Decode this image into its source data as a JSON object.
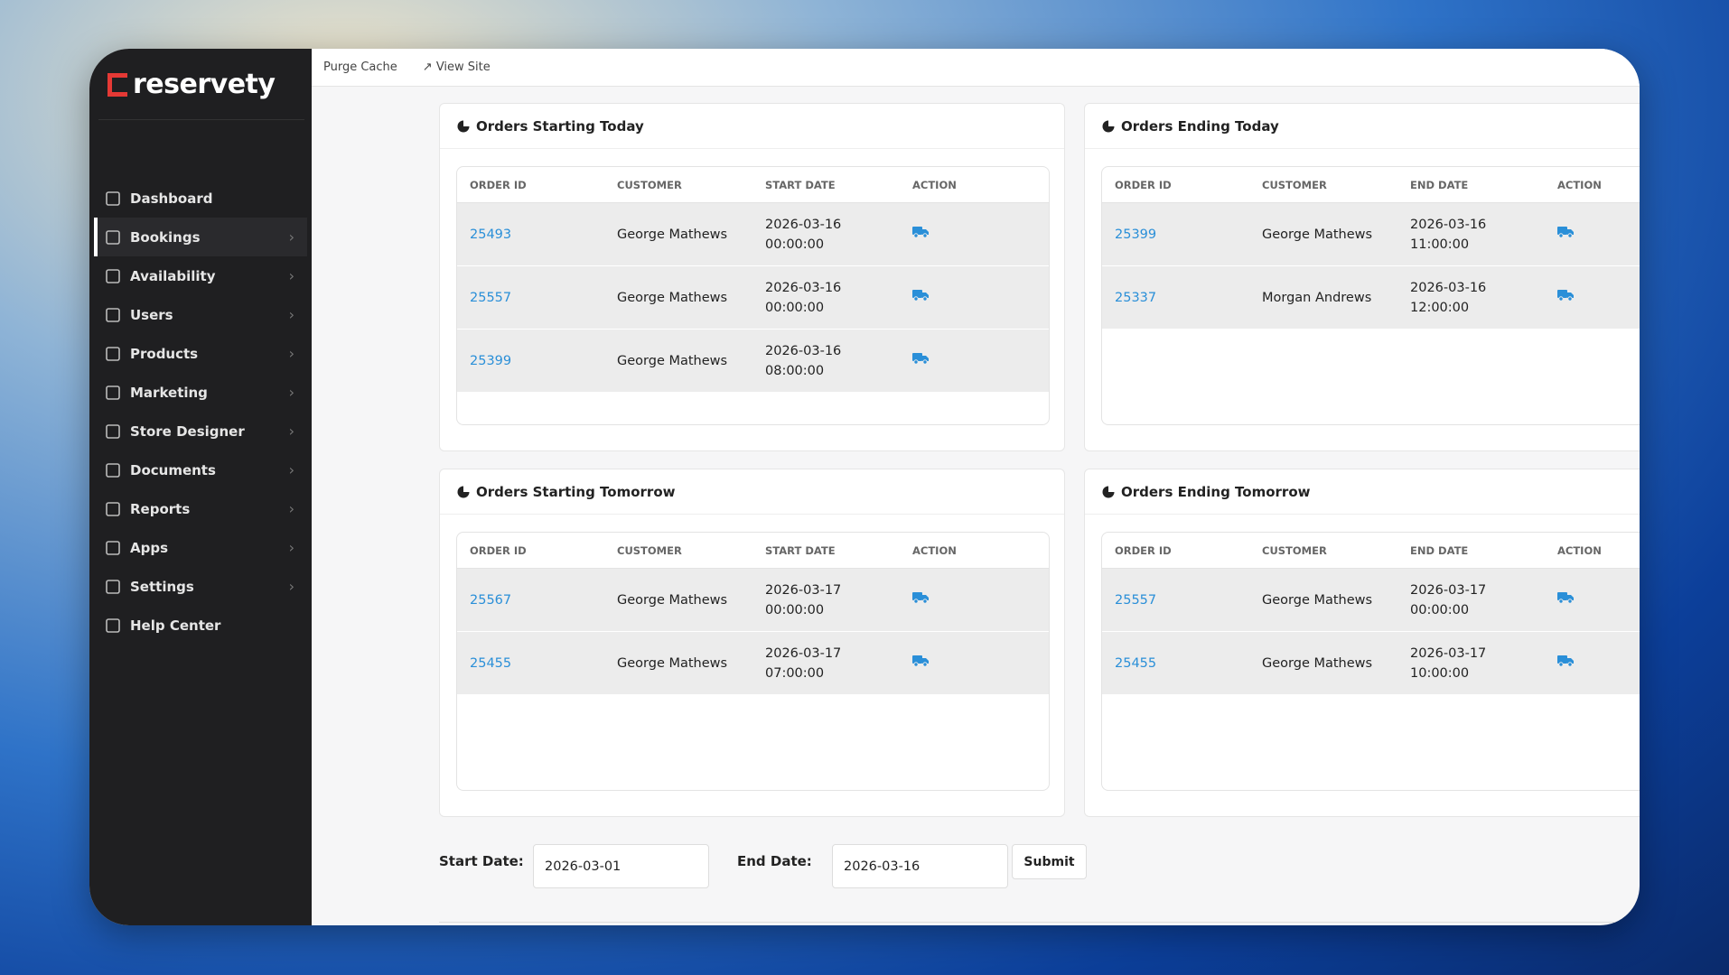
{
  "brand": "reservety",
  "topbar": {
    "links": [
      "Purge Cache",
      "View Site"
    ]
  },
  "sidebar": {
    "active": 1,
    "items": [
      "Dashboard",
      "Bookings",
      "Availability",
      "Users",
      "Products",
      "Marketing",
      "Store Designer",
      "Documents",
      "Reports",
      "Apps",
      "Settings",
      "Help Center"
    ]
  },
  "panels": [
    {
      "title": "Orders Starting Today",
      "columns": [
        "ORDER ID",
        "CUSTOMER",
        "START DATE",
        "ACTION"
      ],
      "rows": [
        {
          "order_id": "25493",
          "customer": "George Mathews",
          "date": "2026-03-16",
          "time": "00:00:00"
        },
        {
          "order_id": "25557",
          "customer": "George Mathews",
          "date": "2026-03-16",
          "time": "00:00:00"
        },
        {
          "order_id": "25399",
          "customer": "George Mathews",
          "date": "2026-03-16",
          "time": "08:00:00"
        }
      ]
    },
    {
      "title": "Orders Ending Today",
      "columns": [
        "ORDER ID",
        "CUSTOMER",
        "END DATE",
        "ACTION"
      ],
      "rows": [
        {
          "order_id": "25399",
          "customer": "George Mathews",
          "date": "2026-03-16",
          "time": "11:00:00"
        },
        {
          "order_id": "25337",
          "customer": "Morgan Andrews",
          "date": "2026-03-16",
          "time": "12:00:00"
        }
      ]
    },
    {
      "title": "Orders Starting Tomorrow",
      "columns": [
        "ORDER ID",
        "CUSTOMER",
        "START DATE",
        "ACTION"
      ],
      "rows": [
        {
          "order_id": "25567",
          "customer": "George Mathews",
          "date": "2026-03-17",
          "time": "00:00:00"
        },
        {
          "order_id": "25455",
          "customer": "George Mathews",
          "date": "2026-03-17",
          "time": "07:00:00"
        }
      ]
    },
    {
      "title": "Orders Ending Tomorrow",
      "columns": [
        "ORDER ID",
        "CUSTOMER",
        "END DATE",
        "ACTION"
      ],
      "rows": [
        {
          "order_id": "25557",
          "customer": "George Mathews",
          "date": "2026-03-17",
          "time": "00:00:00"
        },
        {
          "order_id": "25455",
          "customer": "George Mathews",
          "date": "2026-03-17",
          "time": "10:00:00"
        }
      ]
    }
  ],
  "filter": {
    "start_label": "Start Date:",
    "start_value": "2026-03-01",
    "end_label": "End Date:",
    "end_value": "2026-03-16",
    "submit": "Submit"
  }
}
